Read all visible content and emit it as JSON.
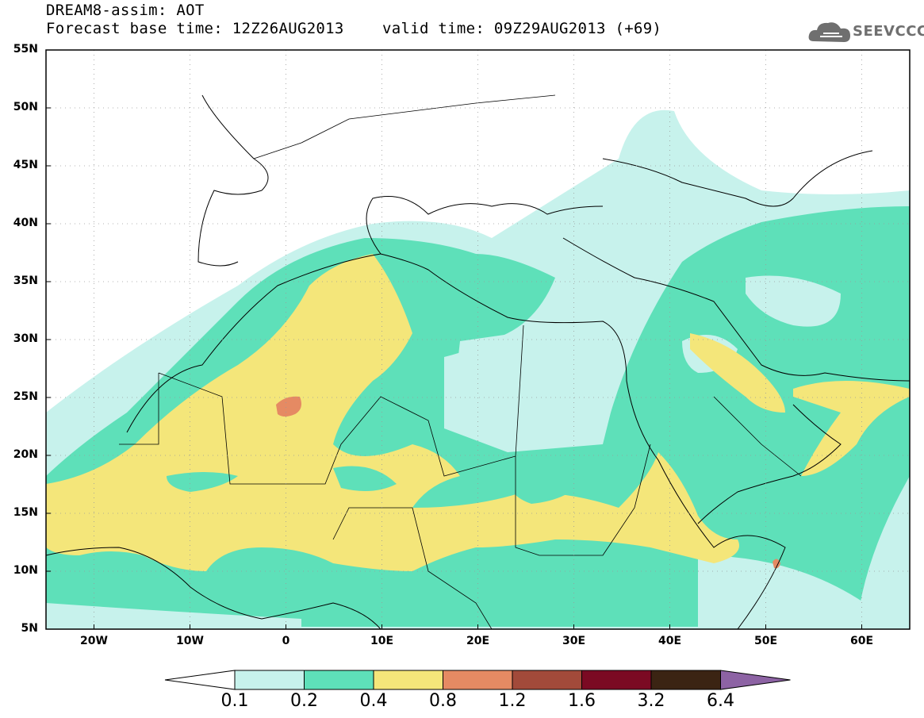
{
  "header": {
    "title_line1": "DREAM8-assim: AOT",
    "base_time": "Forecast base time: 12Z26AUG2013",
    "valid_time": "valid time: 09Z29AUG2013 (+69)"
  },
  "logo": {
    "text": "SEEVCCC",
    "icon": "cloud-icon"
  },
  "map": {
    "lat_labels": [
      "55N",
      "50N",
      "45N",
      "40N",
      "35N",
      "30N",
      "25N",
      "20N",
      "15N",
      "10N",
      "5N"
    ],
    "lon_labels": [
      "20W",
      "10W",
      "0",
      "10E",
      "20E",
      "30E",
      "40E",
      "50E",
      "60E"
    ],
    "colors": {
      "c01": "#c7f2ec",
      "c02": "#5ee0b9",
      "c04": "#f4e67a",
      "c08": "#e58a63",
      "c12": "#a24a3a",
      "c16": "#7b0a23",
      "c32": "#3b2413",
      "c64": "#8d63a4"
    }
  },
  "colorbar": {
    "labels": [
      "0.1",
      "0.2",
      "0.4",
      "0.8",
      "1.2",
      "1.6",
      "3.2",
      "6.4"
    ]
  }
}
